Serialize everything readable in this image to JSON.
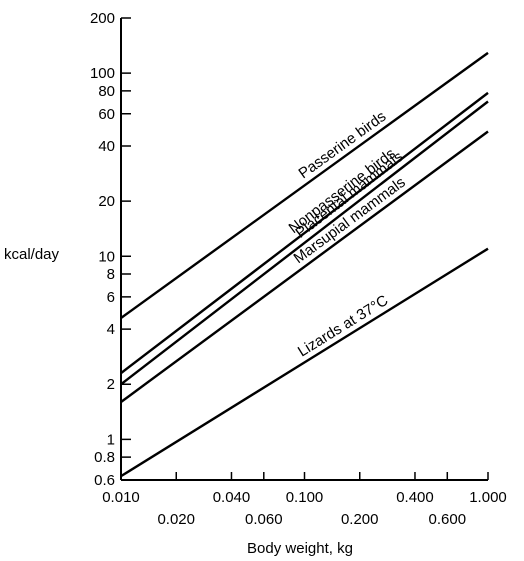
{
  "chart_data": {
    "type": "line",
    "x_scale": "log",
    "y_scale": "log",
    "xlabel": "Body weight, kg",
    "ylabel": "kcal/day",
    "xlim": [
      0.01,
      1.0
    ],
    "ylim": [
      0.6,
      200
    ],
    "grid": false,
    "x_ticks": [
      0.01,
      0.02,
      0.04,
      0.06,
      0.1,
      0.2,
      0.4,
      0.6,
      1.0
    ],
    "x_tick_labels": [
      "0.010",
      "0.020",
      "0.040",
      "0.060",
      "0.100",
      "0.200",
      "0.400",
      "0.600",
      "1.000"
    ],
    "y_ticks": [
      0.6,
      0.8,
      1,
      2,
      4,
      6,
      8,
      10,
      20,
      40,
      60,
      80,
      100,
      200
    ],
    "y_tick_labels": [
      "0.6",
      "0.8",
      "1",
      "2",
      "4",
      "6",
      "8",
      "10",
      "20",
      "40",
      "60",
      "80",
      "100",
      "200"
    ],
    "series": [
      {
        "name": "Passerine birds",
        "x": [
          0.01,
          1.0
        ],
        "y": [
          4.6,
          129
        ]
      },
      {
        "name": "Nonpasserine birds",
        "x": [
          0.01,
          1.0
        ],
        "y": [
          2.3,
          78
        ]
      },
      {
        "name": "Placental mammals",
        "x": [
          0.01,
          1.0
        ],
        "y": [
          2.0,
          70
        ]
      },
      {
        "name": "Marsupial mammals",
        "x": [
          0.01,
          1.0
        ],
        "y": [
          1.6,
          48
        ]
      },
      {
        "name": "Lizards at 37°C",
        "x": [
          0.01,
          1.0
        ],
        "y": [
          0.63,
          11
        ]
      }
    ]
  }
}
